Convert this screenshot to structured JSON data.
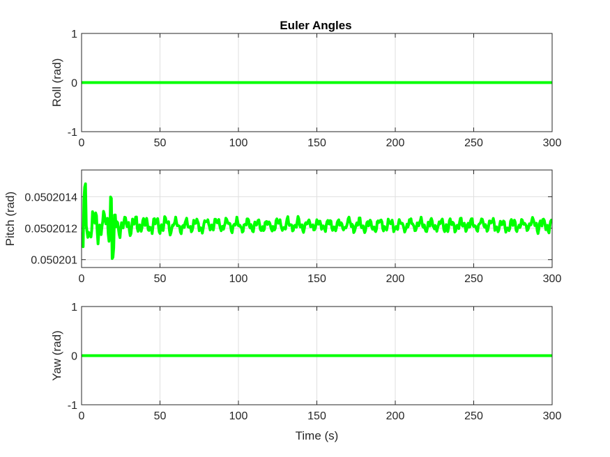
{
  "figure": {
    "title": "Euler Angles",
    "line_color": "#00ff00"
  },
  "chart_data": [
    {
      "type": "line",
      "ylabel": "Roll (rad)",
      "xlabel": "",
      "xlim": [
        0,
        300
      ],
      "ylim": [
        -1,
        1
      ],
      "xticks": [
        "0",
        "50",
        "100",
        "150",
        "200",
        "250",
        "300"
      ],
      "yticks": [
        "-1",
        "0",
        "1"
      ],
      "grid": true,
      "series": [
        {
          "x": [
            0,
            300
          ],
          "y": [
            0,
            0
          ]
        }
      ]
    },
    {
      "type": "line",
      "ylabel": "Pitch (rad)",
      "xlabel": "",
      "xlim": [
        0,
        300
      ],
      "ylim": [
        0.05020095,
        0.05020157
      ],
      "xticks": [
        "0",
        "50",
        "100",
        "150",
        "200",
        "250",
        "300"
      ],
      "ytick_values": [
        0.050201,
        0.0502012,
        0.0502014
      ],
      "yticks": [
        "0.050201",
        "0.0502012",
        "0.0502014"
      ],
      "grid": true,
      "signal": {
        "description": "oscillating signal",
        "mean": 0.05020122,
        "initial_amplitude": 1.8e-07,
        "settled_amplitude": 5e-08,
        "sample_step": 0.5
      },
      "series": [
        {
          "x": [],
          "y": []
        }
      ]
    },
    {
      "type": "line",
      "ylabel": "Yaw (rad)",
      "xlabel": "Time (s)",
      "xlim": [
        0,
        300
      ],
      "ylim": [
        -1,
        1
      ],
      "xticks": [
        "0",
        "50",
        "100",
        "150",
        "200",
        "250",
        "300"
      ],
      "yticks": [
        "-1",
        "0",
        "1"
      ],
      "grid": true,
      "series": [
        {
          "x": [
            0,
            300
          ],
          "y": [
            0,
            0
          ]
        }
      ]
    }
  ]
}
